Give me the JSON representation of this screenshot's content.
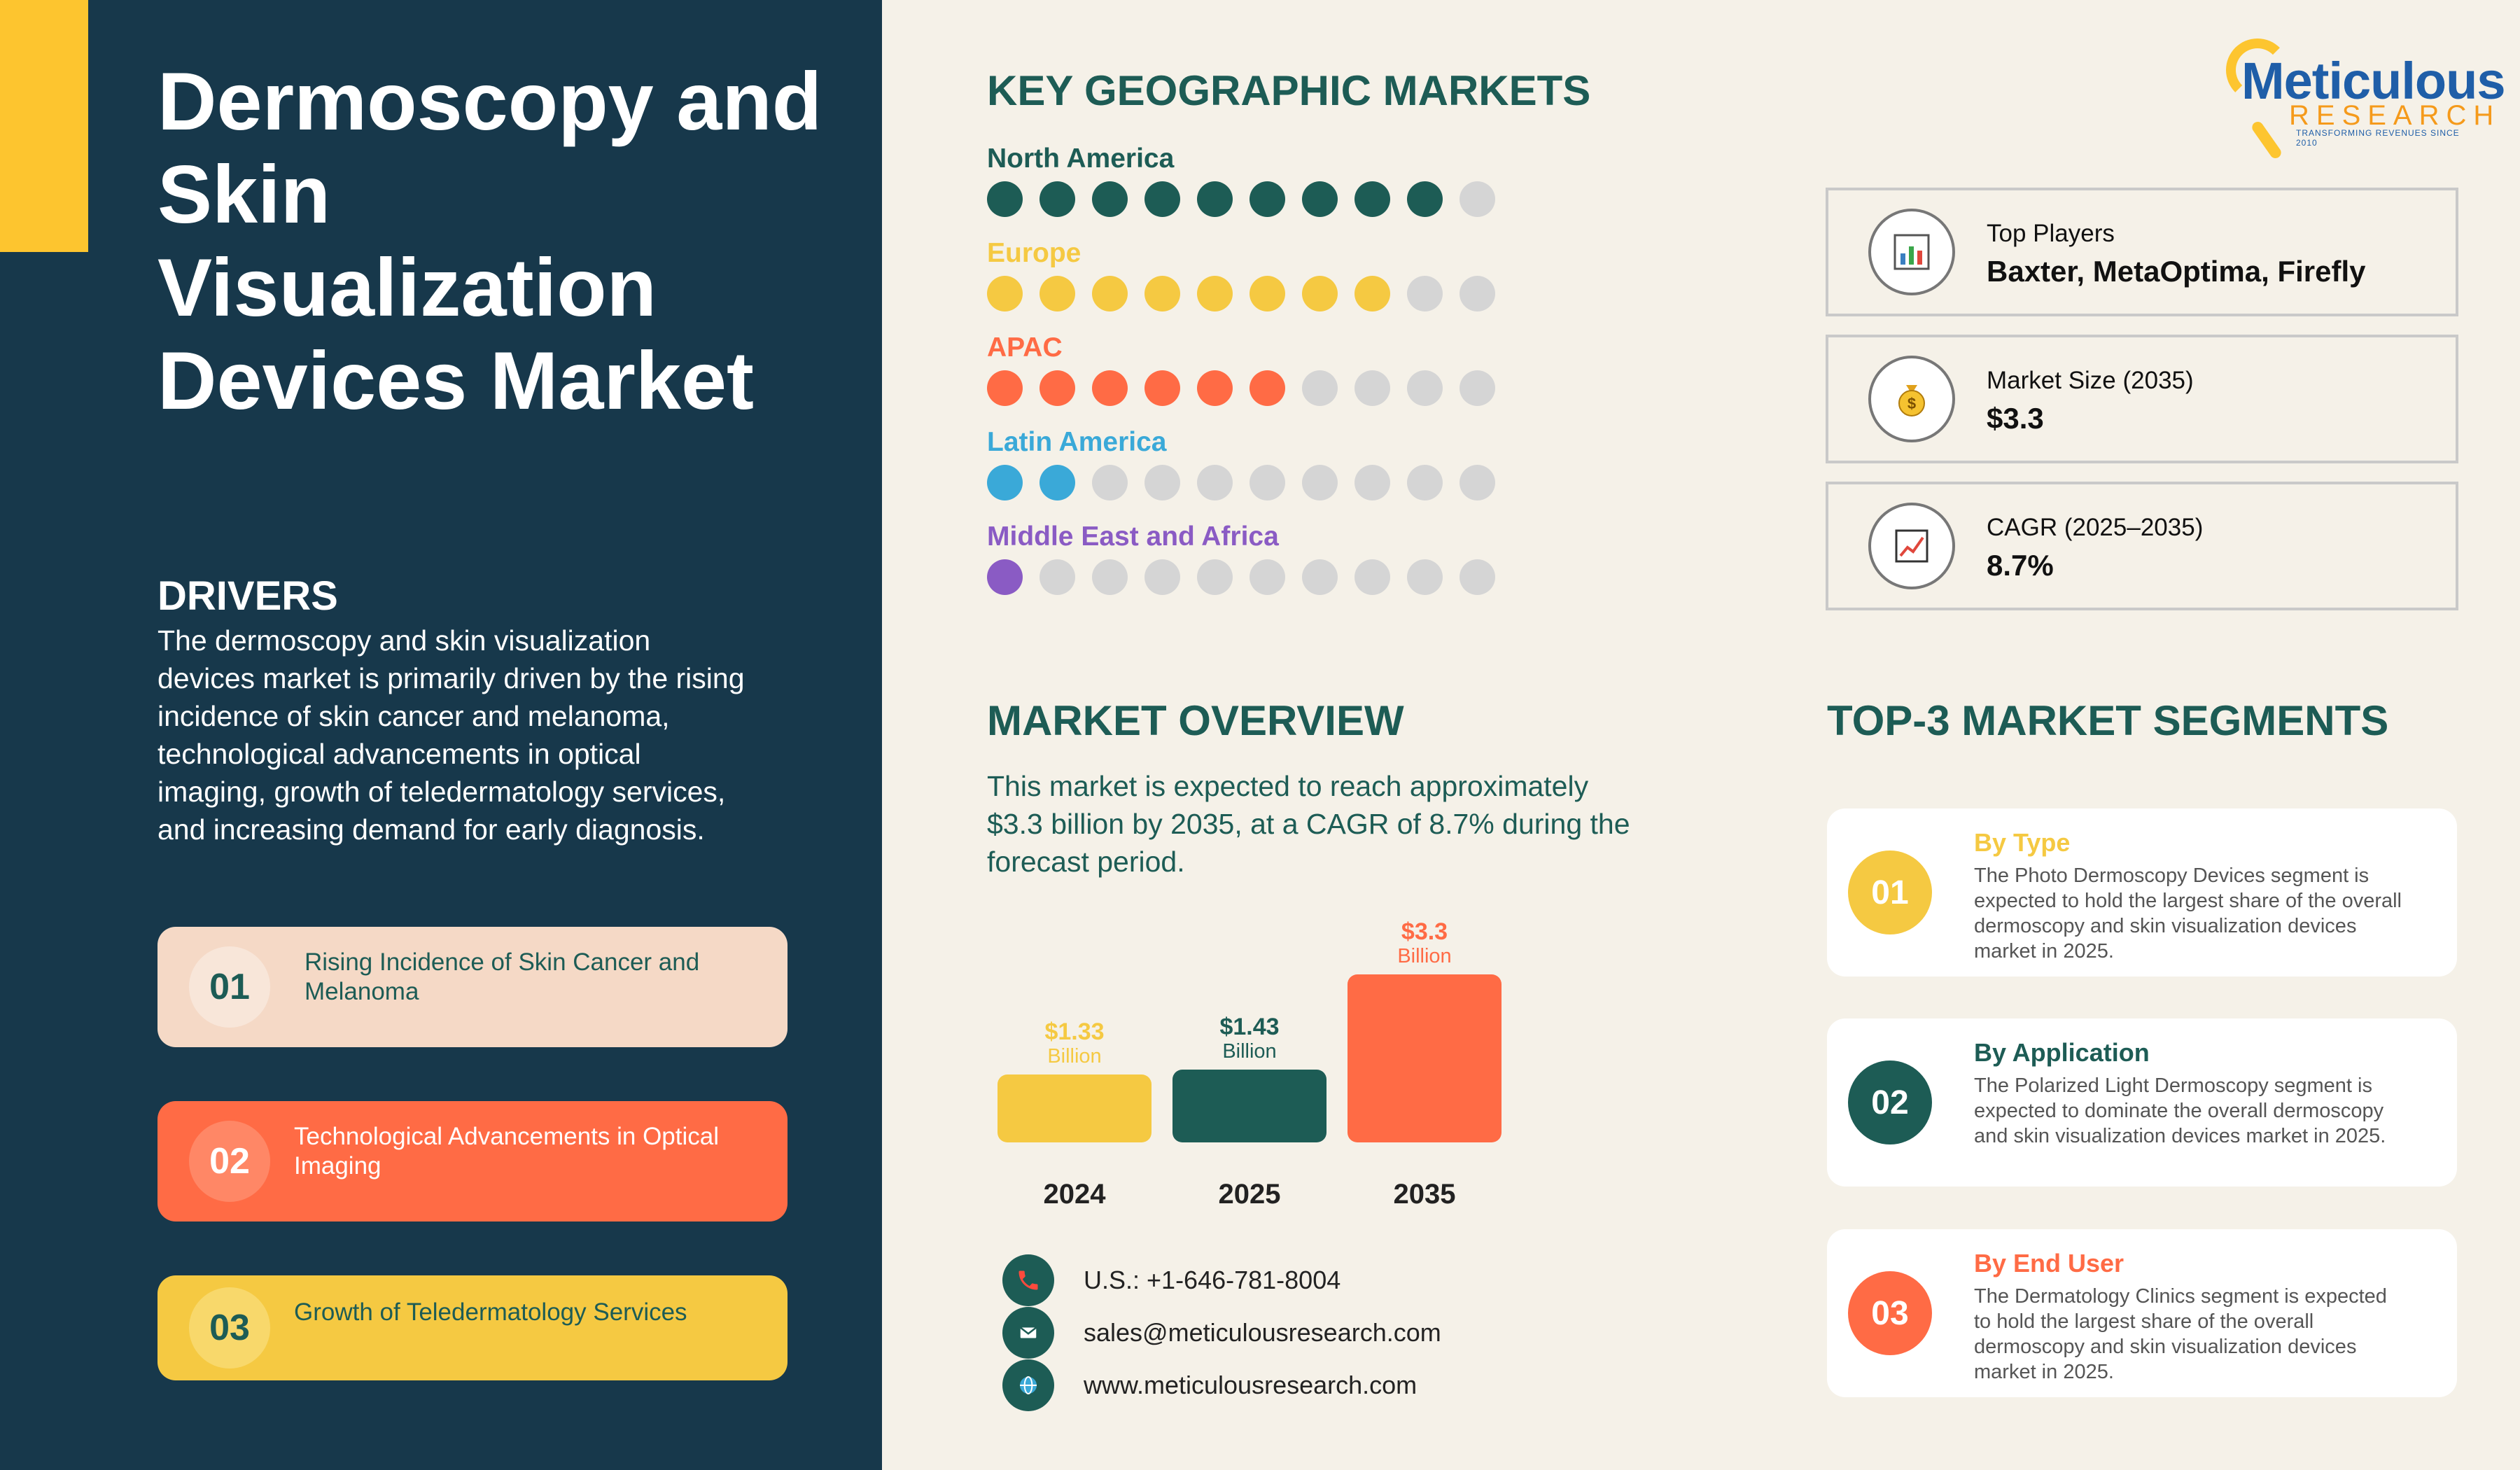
{
  "title": "Dermoscopy and Skin Visualization Devices Market",
  "drivers": {
    "heading": "DRIVERS",
    "text": "The dermoscopy and skin visualization devices market is primarily driven by the rising incidence of skin cancer and melanoma, technological advancements in optical imaging, growth of teledermatology services, and increasing demand for early diagnosis.",
    "items": [
      {
        "num": "01",
        "label": "Rising Incidence of Skin Cancer and Melanoma"
      },
      {
        "num": "02",
        "label": "Technological Advancements in Optical Imaging"
      },
      {
        "num": "03",
        "label": "Growth of Teledermatology Services"
      }
    ]
  },
  "geo": {
    "heading": "KEY GEOGRAPHIC MARKETS",
    "regions": [
      {
        "name": "North America",
        "filled": 9,
        "total": 10,
        "color": "#1d5c55"
      },
      {
        "name": "Europe",
        "filled": 8,
        "total": 10,
        "color": "#f5c942"
      },
      {
        "name": "APAC",
        "filled": 6,
        "total": 10,
        "color": "#ff6b45"
      },
      {
        "name": "Latin America",
        "filled": 2,
        "total": 10,
        "color": "#3aa9d8"
      },
      {
        "name": "Middle East and Africa",
        "filled": 1,
        "total": 10,
        "color": "#8a5bc4"
      }
    ]
  },
  "logo": {
    "word": "Meticulous",
    "sub": "RESEARCH",
    "tag": "TRANSFORMING REVENUES SINCE 2010"
  },
  "info": [
    {
      "label": "Top Players",
      "value": "Baxter, MetaOptima, Firefly",
      "icon": "bar-chart-icon"
    },
    {
      "label": "Market Size (2035)",
      "value": "$3.3",
      "icon": "money-bag-icon"
    },
    {
      "label": "CAGR (2025–2035)",
      "value": "8.7%",
      "icon": "trend-chart-icon"
    }
  ],
  "overview": {
    "heading": "MARKET OVERVIEW",
    "text": "This market is expected to reach approximately $3.3 billion by 2035, at a CAGR of 8.7% during the forecast period."
  },
  "chart_data": {
    "type": "bar",
    "categories": [
      "2024",
      "2025",
      "2035"
    ],
    "values": [
      1.33,
      1.43,
      3.3
    ],
    "value_labels": [
      "$1.33",
      "$1.43",
      "$3.3"
    ],
    "unit_label": "Billion",
    "colors": [
      "#f5c942",
      "#1d5c55",
      "#ff6b45"
    ]
  },
  "contacts": [
    {
      "icon": "phone-icon",
      "text": "U.S.: +1-646-781-8004"
    },
    {
      "icon": "email-icon",
      "text": "sales@meticulousresearch.com"
    },
    {
      "icon": "globe-icon",
      "text": "www.meticulousresearch.com"
    }
  ],
  "segments": {
    "heading": "TOP-3 MARKET SEGMENTS",
    "items": [
      {
        "num": "01",
        "title": "By Type",
        "color": "#f5c942",
        "desc": "The Photo Dermoscopy Devices segment is expected to hold the largest share of the overall dermoscopy and skin visualization devices market in 2025."
      },
      {
        "num": "02",
        "title": "By Application",
        "color": "#1d5c55",
        "desc": "The Polarized Light Dermoscopy segment is expected to dominate the overall dermoscopy and skin visualization devices market in 2025."
      },
      {
        "num": "03",
        "title": "By End User",
        "color": "#ff6b45",
        "desc": "The Dermatology Clinics segment is expected to hold the largest share of the overall dermoscopy and skin visualization devices market in 2025."
      }
    ]
  }
}
